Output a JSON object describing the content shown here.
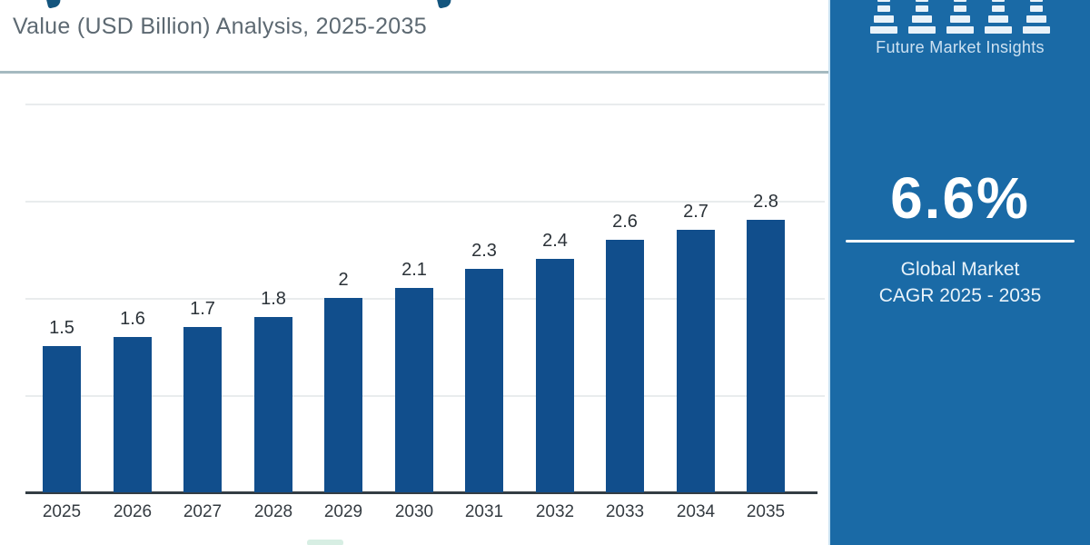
{
  "header": {
    "subtitle": "Value (USD Billion) Analysis, 2025-2035"
  },
  "chart_data": {
    "type": "bar",
    "title": "Value (USD Billion) Analysis, 2025-2035",
    "categories": [
      "2025",
      "2026",
      "2027",
      "2028",
      "2029",
      "2030",
      "2031",
      "2032",
      "2033",
      "2034",
      "2035"
    ],
    "values": [
      1.5,
      1.6,
      1.7,
      1.8,
      2,
      2.1,
      2.3,
      2.4,
      2.6,
      2.7,
      2.8
    ],
    "xlabel": "",
    "ylabel": "",
    "ylim": [
      0,
      4.5
    ],
    "gridlines": [
      1,
      2,
      3,
      4
    ],
    "grid": "horizontal",
    "legend": false,
    "value_labels": true,
    "bar_color": "#114e8c",
    "label_color": "#2b3238"
  },
  "sidebar": {
    "bg_color": "#1a6aa6",
    "logo_text": "Future Market Insights",
    "logo_icon": "bar-chart-pillars-icon",
    "cagr_value": "6.6%",
    "cagr_label_line1": "Global Market",
    "cagr_label_line2": "CAGR 2025 - 2035"
  }
}
